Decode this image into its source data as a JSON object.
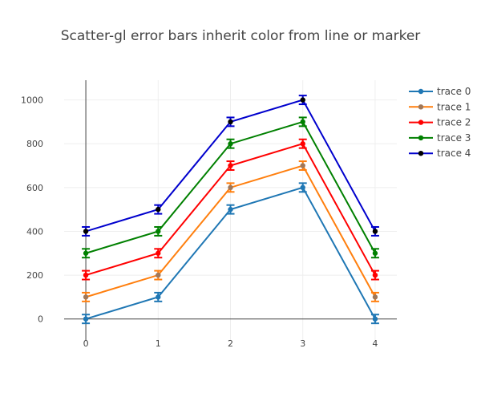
{
  "chart_data": {
    "type": "line",
    "title": "Scatter-gl error bars inherit color from line or marker",
    "xlabel": "",
    "ylabel": "",
    "x": [
      0,
      1,
      2,
      3,
      4
    ],
    "xticks": [
      "0",
      "1",
      "2",
      "3",
      "4"
    ],
    "yticks": [
      "0",
      "200",
      "400",
      "600",
      "800",
      "1000"
    ],
    "xlim": [
      -0.3,
      4.3
    ],
    "ylim": [
      -100,
      1090
    ],
    "grid": true,
    "legend_position": "top-right",
    "error_y": 20,
    "series": [
      {
        "name": "trace 0",
        "values": [
          0,
          100,
          500,
          600,
          0
        ],
        "line_color": "#1f77b4",
        "marker_color": "#1f77b4"
      },
      {
        "name": "trace 1",
        "values": [
          100,
          200,
          600,
          700,
          100
        ],
        "line_color": "#ff7f0e",
        "marker_color": "#a0785a"
      },
      {
        "name": "trace 2",
        "values": [
          200,
          300,
          700,
          800,
          200
        ],
        "line_color": "#ff0000",
        "marker_color": "#ff0000"
      },
      {
        "name": "trace 3",
        "values": [
          300,
          400,
          800,
          900,
          300
        ],
        "line_color": "#008000",
        "marker_color": "#008000"
      },
      {
        "name": "trace 4",
        "values": [
          400,
          500,
          900,
          1000,
          400
        ],
        "line_color": "#0000cd",
        "marker_color": "#000000"
      }
    ]
  }
}
